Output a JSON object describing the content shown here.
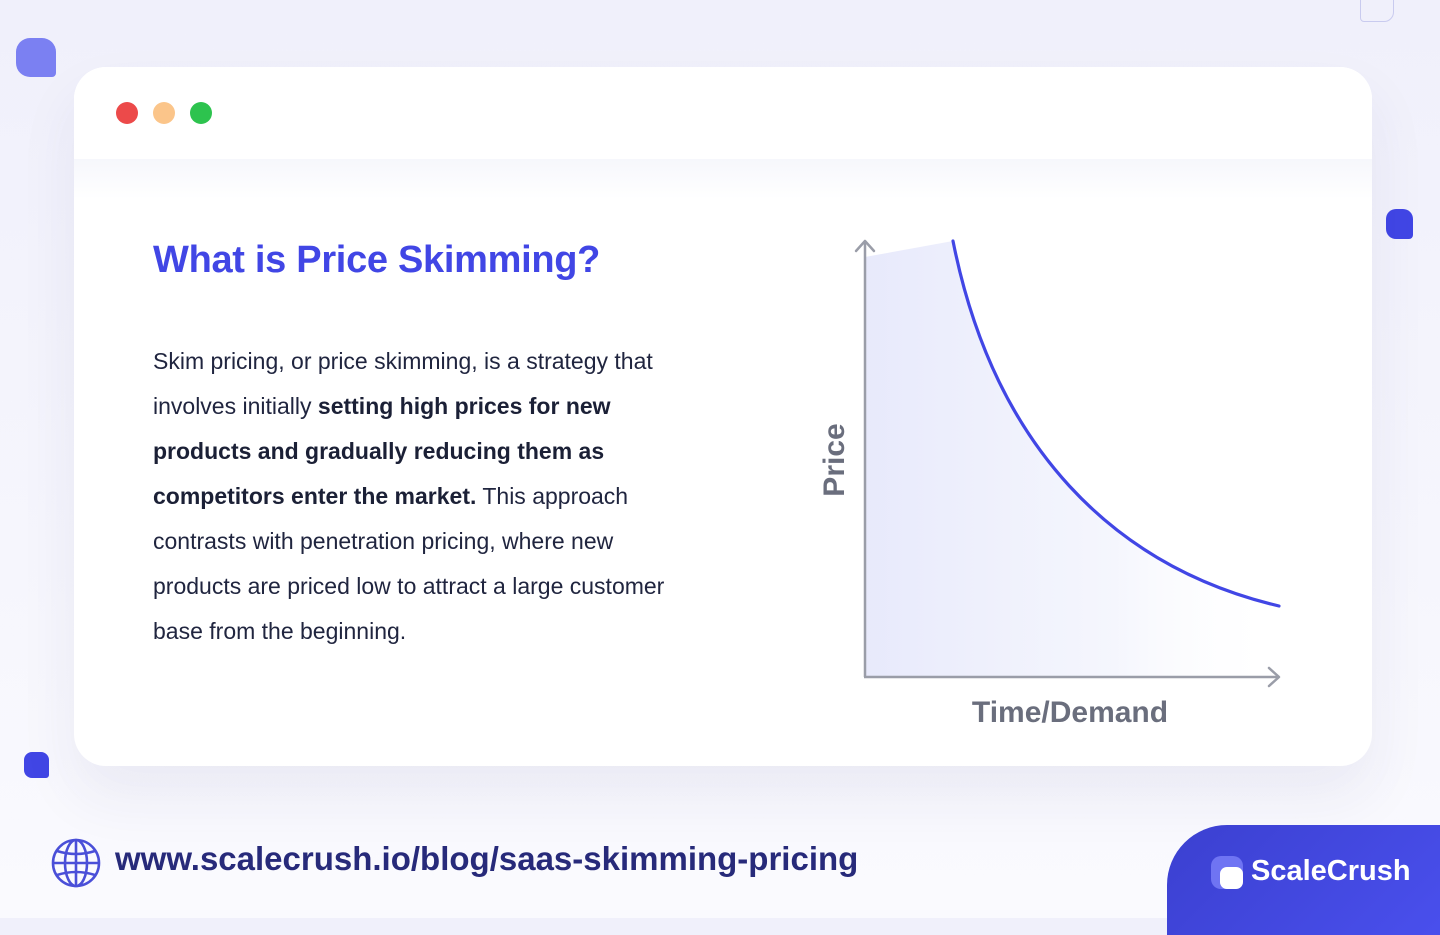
{
  "window": {
    "controls": [
      "close",
      "minimize",
      "maximize"
    ],
    "colors": {
      "close": "#ec4a4a",
      "minimize": "#fbc58a",
      "maximize": "#2dc34e"
    }
  },
  "article": {
    "title": "What is Price Skimming?",
    "paragraph": {
      "before_bold": "Skim pricing, or price skimming, is a strategy that involves initially ",
      "bold": "setting high prices for new products and gradually reducing them as competitors enter the market.",
      "after_bold": " This approach contrasts with penetration pricing, where new products are priced low to attract a large customer base from the beginning."
    }
  },
  "diagram": {
    "y_axis_label": "Price",
    "x_axis_label": "Time/Demand",
    "curve": "decreasing convex curve",
    "curve_color": "#4146e5",
    "axis_color": "#9a9da8"
  },
  "footer": {
    "icon": "globe-icon",
    "url": "www.scalecrush.io/blog/saas-skimming-pricing",
    "brand_name": "ScaleCrush",
    "brand_color": "#4146e5"
  }
}
